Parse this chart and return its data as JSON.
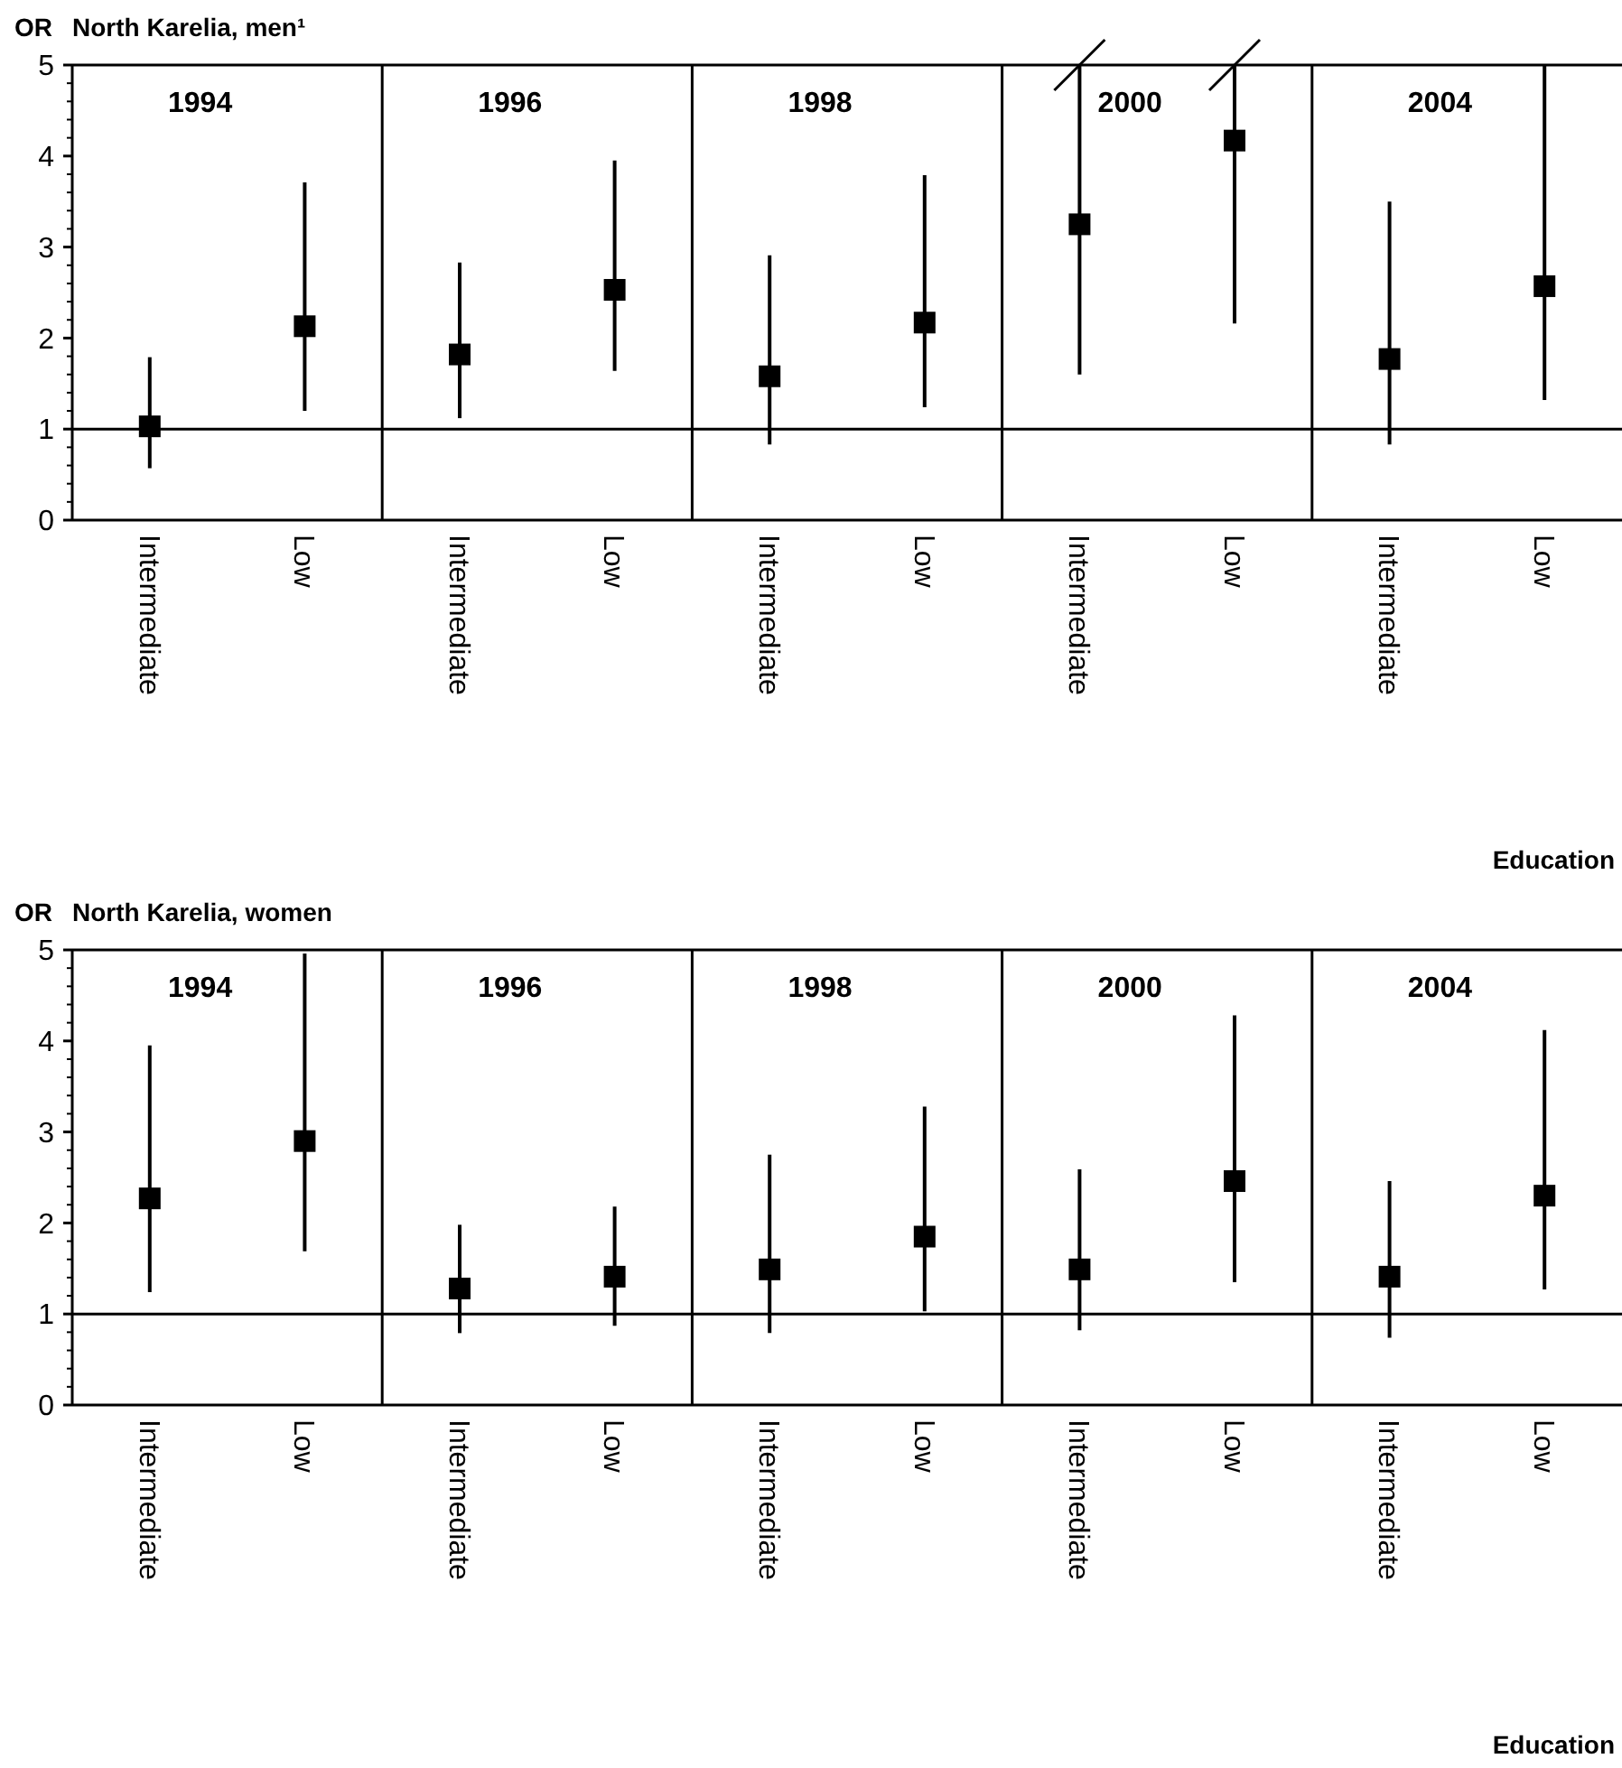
{
  "chart_data": [
    {
      "type": "scatter",
      "title": "North Karelia, men¹",
      "ylabel": "OR",
      "xlabel": "Education",
      "categories": [
        "Intermediate",
        "Low",
        "Intermediate",
        "Low",
        "Intermediate",
        "Low",
        "Intermediate",
        "Low",
        "Intermediate",
        "Low"
      ],
      "series": [
        {
          "color": "#000000",
          "values": [
            1.03,
            2.13,
            1.82,
            2.53,
            1.58,
            2.17,
            3.25,
            4.17,
            1.77,
            2.57
          ],
          "errors": [
            [
              0.57,
              1.79
            ],
            [
              1.2,
              3.71
            ],
            [
              1.12,
              2.83
            ],
            [
              1.64,
              3.95
            ],
            [
              0.83,
              2.91
            ],
            [
              1.24,
              3.79
            ],
            [
              1.6,
              5
            ],
            [
              2.16,
              5
            ],
            [
              0.83,
              3.5
            ],
            [
              1.32,
              5
            ]
          ]
        }
      ],
      "annotations": [
        "1994",
        "1996",
        "1998",
        "2000",
        "2004"
      ],
      "ylim": [
        0,
        5
      ],
      "yticks": [
        0,
        1,
        2,
        3,
        4,
        5
      ],
      "ref_lines": [
        {
          "axis": "y",
          "value": 1
        }
      ],
      "marker": "square"
    },
    {
      "type": "scatter",
      "title": "North Karelia, women",
      "ylabel": "OR",
      "xlabel": "Education",
      "categories": [
        "Intermediate",
        "Low",
        "Intermediate",
        "Low",
        "Intermediate",
        "Low",
        "Intermediate",
        "Low",
        "Intermediate",
        "Low"
      ],
      "series": [
        {
          "color": "#000000",
          "values": [
            2.27,
            2.9,
            1.28,
            1.41,
            1.49,
            1.85,
            1.49,
            2.46,
            1.41,
            2.3
          ],
          "errors": [
            [
              1.24,
              3.95
            ],
            [
              1.69,
              4.96
            ],
            [
              0.79,
              1.98
            ],
            [
              0.87,
              2.18
            ],
            [
              0.79,
              2.75
            ],
            [
              1.03,
              3.28
            ],
            [
              0.82,
              2.59
            ],
            [
              1.35,
              4.28
            ],
            [
              0.74,
              2.46
            ],
            [
              1.27,
              4.12
            ]
          ]
        }
      ],
      "annotations": [
        "1994",
        "1996",
        "1998",
        "2000",
        "2004"
      ],
      "ylim": [
        0,
        5
      ],
      "yticks": [
        0,
        1,
        2,
        3,
        4,
        5
      ],
      "ref_lines": [
        {
          "axis": "y",
          "value": 1
        }
      ],
      "marker": "square"
    }
  ]
}
